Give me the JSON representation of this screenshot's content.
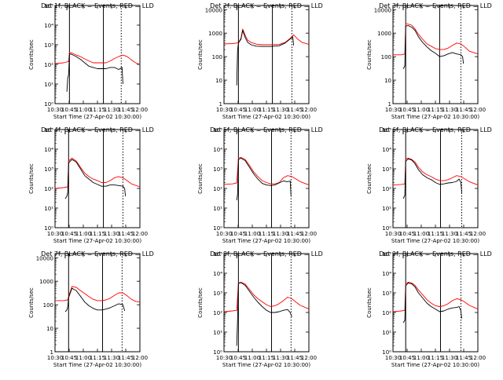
{
  "figure": {
    "colors": {
      "events": "#000000",
      "lld": "#ff0000",
      "axes": "#000000",
      "background": "#ffffff"
    },
    "x_tick_labels": [
      "10:30",
      "10:45",
      "11:00",
      "11:15",
      "11:30",
      "11:45",
      "12:00"
    ],
    "xlabel": "Start Time (27-Apr-02 10:30:00)",
    "ylabel": "Counts/sec"
  },
  "chart_data": [
    {
      "type": "line",
      "title": "Det 1f, BLACK = Events, RED = LLD",
      "xlim": [
        0,
        100
      ],
      "ylog": true,
      "ylim": [
        1,
        100000
      ],
      "y_tick_labels": [
        "10⁰",
        "10¹",
        "10²",
        "10³",
        "10⁴",
        "10⁵"
      ],
      "events_start": 14,
      "vlines": [
        {
          "x": 17,
          "style": "solid"
        },
        {
          "x": 57,
          "style": "solid"
        },
        {
          "x": 78,
          "style": "dotted"
        }
      ],
      "series": [
        {
          "color": "#ff0000",
          "x": [
            0,
            10,
            16,
            17,
            20,
            25,
            30,
            35,
            40,
            45,
            50,
            55,
            60,
            65,
            70,
            75,
            80,
            85,
            90,
            95,
            100
          ],
          "y": [
            110,
            120,
            140,
            400,
            380,
            300,
            250,
            190,
            150,
            120,
            120,
            120,
            120,
            150,
            200,
            250,
            300,
            250,
            170,
            120,
            100
          ]
        },
        {
          "color": "#000000",
          "x": [
            14,
            15,
            16,
            17,
            20,
            25,
            30,
            35,
            40,
            45,
            50,
            55,
            60,
            65,
            70,
            75,
            79,
            80
          ],
          "y": [
            4,
            20,
            30,
            350,
            320,
            250,
            180,
            120,
            80,
            70,
            60,
            60,
            60,
            70,
            70,
            55,
            70,
            10
          ]
        }
      ]
    },
    {
      "type": "line",
      "title": "Det 2f, BLACK = Events, RED = LLD",
      "xlim": [
        0,
        100
      ],
      "ylog": true,
      "ylim": [
        1,
        15000
      ],
      "y_tick_labels": [
        "1",
        "10",
        "100",
        "1000",
        "10000"
      ],
      "events_start": 15,
      "vlines": [
        {
          "x": 17,
          "style": "solid"
        },
        {
          "x": 57,
          "style": "solid"
        },
        {
          "x": 80,
          "style": "dotted"
        }
      ],
      "series": [
        {
          "color": "#ff0000",
          "x": [
            0,
            10,
            15,
            17,
            20,
            22,
            25,
            28,
            32,
            38,
            45,
            55,
            65,
            72,
            78,
            82,
            87,
            92,
            100
          ],
          "y": [
            350,
            360,
            380,
            400,
            600,
            1500,
            800,
            500,
            400,
            340,
            320,
            320,
            330,
            400,
            600,
            850,
            550,
            400,
            330
          ]
        },
        {
          "color": "#000000",
          "x": [
            15,
            16,
            17,
            20,
            22,
            25,
            28,
            32,
            38,
            45,
            55,
            65,
            72,
            78,
            81,
            82
          ],
          "y": [
            6,
            200,
            380,
            550,
            1300,
            650,
            400,
            320,
            280,
            270,
            270,
            290,
            380,
            560,
            700,
            300
          ]
        }
      ]
    },
    {
      "type": "line",
      "title": "Det 3f, BLACK = Events, RED = LLD",
      "xlim": [
        0,
        100
      ],
      "ylog": true,
      "ylim": [
        1,
        15000
      ],
      "y_tick_labels": [
        "1",
        "10",
        "100",
        "1000",
        "10000"
      ],
      "events_start": 12,
      "vlines": [
        {
          "x": 15,
          "style": "solid"
        },
        {
          "x": 55,
          "style": "solid"
        },
        {
          "x": 80,
          "style": "dotted"
        }
      ],
      "series": [
        {
          "color": "#ff0000",
          "x": [
            0,
            10,
            14,
            15,
            18,
            22,
            26,
            30,
            35,
            40,
            45,
            50,
            55,
            60,
            65,
            70,
            75,
            80,
            85,
            90,
            100
          ],
          "y": [
            120,
            120,
            130,
            2500,
            2400,
            2200,
            1500,
            900,
            550,
            350,
            280,
            220,
            200,
            200,
            230,
            300,
            380,
            350,
            250,
            170,
            130
          ]
        },
        {
          "color": "#000000",
          "x": [
            12,
            14,
            15,
            18,
            22,
            26,
            30,
            35,
            40,
            45,
            50,
            55,
            60,
            65,
            70,
            75,
            80,
            82,
            83
          ],
          "y": [
            30,
            40,
            2000,
            2100,
            1800,
            1300,
            700,
            400,
            260,
            180,
            140,
            100,
            110,
            130,
            150,
            130,
            120,
            100,
            50
          ]
        }
      ]
    },
    {
      "type": "line",
      "title": "Det 4f, BLACK = Events, RED = LLD",
      "xlim": [
        0,
        100
      ],
      "ylog": true,
      "ylim": [
        1,
        100000
      ],
      "y_tick_labels": [
        "10⁰",
        "10¹",
        "10²",
        "10³",
        "10⁴",
        "10⁵"
      ],
      "events_start": 12,
      "vlines": [
        {
          "x": 16,
          "style": "solid"
        },
        {
          "x": 57,
          "style": "solid"
        },
        {
          "x": 80,
          "style": "dotted"
        }
      ],
      "series": [
        {
          "color": "#ff0000",
          "x": [
            0,
            10,
            15,
            16,
            20,
            25,
            30,
            35,
            40,
            45,
            50,
            55,
            60,
            65,
            70,
            75,
            80,
            85,
            90,
            100
          ],
          "y": [
            100,
            110,
            120,
            2500,
            3500,
            2500,
            1200,
            600,
            400,
            300,
            250,
            200,
            200,
            250,
            350,
            400,
            350,
            250,
            170,
            120
          ]
        },
        {
          "color": "#000000",
          "x": [
            12,
            14,
            15,
            16,
            20,
            25,
            30,
            35,
            40,
            45,
            50,
            55,
            60,
            65,
            70,
            75,
            80,
            82,
            83
          ],
          "y": [
            30,
            40,
            60,
            2000,
            3000,
            2200,
            1000,
            450,
            300,
            200,
            160,
            130,
            130,
            150,
            150,
            140,
            130,
            100,
            40
          ]
        }
      ]
    },
    {
      "type": "line",
      "title": "Det 5f, BLACK = Events, RED = LLD",
      "xlim": [
        0,
        100
      ],
      "ylog": true,
      "ylim": [
        1,
        100000
      ],
      "y_tick_labels": [
        "10⁰",
        "10¹",
        "10²",
        "10³",
        "10⁴",
        "10⁵"
      ],
      "events_start": 15,
      "vlines": [
        {
          "x": 17,
          "style": "solid"
        },
        {
          "x": 56,
          "style": "solid"
        },
        {
          "x": 79,
          "style": "dotted"
        }
      ],
      "series": [
        {
          "color": "#ff0000",
          "x": [
            0,
            10,
            15,
            17,
            20,
            25,
            30,
            35,
            40,
            45,
            50,
            55,
            60,
            65,
            70,
            75,
            80,
            85,
            90,
            100
          ],
          "y": [
            160,
            170,
            190,
            3500,
            3800,
            3000,
            1500,
            700,
            400,
            250,
            200,
            170,
            170,
            200,
            350,
            450,
            400,
            300,
            220,
            150
          ]
        },
        {
          "color": "#000000",
          "x": [
            15,
            16,
            17,
            20,
            25,
            30,
            35,
            40,
            45,
            50,
            55,
            60,
            65,
            70,
            75,
            78,
            79
          ],
          "y": [
            25,
            50,
            3000,
            3500,
            2600,
            1200,
            550,
            300,
            180,
            150,
            140,
            150,
            190,
            240,
            220,
            240,
            40
          ]
        }
      ]
    },
    {
      "type": "line",
      "title": "Det 6f, BLACK = Events, RED = LLD",
      "xlim": [
        0,
        100
      ],
      "ylog": true,
      "ylim": [
        1,
        100000
      ],
      "y_tick_labels": [
        "10⁰",
        "10¹",
        "10²",
        "10³",
        "10⁴",
        "10⁵"
      ],
      "events_start": 12,
      "vlines": [
        {
          "x": 15,
          "style": "solid"
        },
        {
          "x": 56,
          "style": "solid"
        },
        {
          "x": 81,
          "style": "dotted"
        }
      ],
      "series": [
        {
          "color": "#ff0000",
          "x": [
            0,
            10,
            14,
            15,
            18,
            22,
            26,
            30,
            35,
            40,
            45,
            50,
            55,
            60,
            65,
            70,
            75,
            80,
            85,
            90,
            100
          ],
          "y": [
            150,
            160,
            170,
            3200,
            3500,
            3000,
            2200,
            1200,
            700,
            500,
            400,
            300,
            250,
            250,
            280,
            350,
            450,
            400,
            300,
            220,
            150
          ]
        },
        {
          "color": "#000000",
          "x": [
            12,
            14,
            15,
            18,
            22,
            26,
            30,
            35,
            40,
            45,
            50,
            55,
            60,
            65,
            70,
            75,
            78,
            80,
            81
          ],
          "y": [
            30,
            45,
            2500,
            3200,
            2800,
            1800,
            900,
            500,
            350,
            280,
            200,
            160,
            170,
            190,
            200,
            230,
            300,
            200,
            60
          ]
        }
      ]
    },
    {
      "type": "line",
      "title": "Det 7f, BLACK = Events, RED = LLD",
      "xlim": [
        0,
        100
      ],
      "ylog": true,
      "ylim": [
        1,
        15000
      ],
      "y_tick_labels": [
        "1",
        "10",
        "100",
        "1000",
        "10000"
      ],
      "events_start": 12,
      "vlines": [
        {
          "x": 16,
          "style": "solid"
        },
        {
          "x": 56,
          "style": "solid"
        },
        {
          "x": 79,
          "style": "dotted"
        }
      ],
      "series": [
        {
          "color": "#ff0000",
          "x": [
            0,
            10,
            15,
            16,
            20,
            25,
            30,
            35,
            40,
            45,
            50,
            55,
            60,
            65,
            70,
            75,
            80,
            85,
            90,
            95,
            100
          ],
          "y": [
            150,
            150,
            160,
            220,
            600,
            550,
            400,
            300,
            220,
            170,
            150,
            150,
            160,
            190,
            250,
            320,
            320,
            240,
            170,
            140,
            130
          ]
        },
        {
          "color": "#000000",
          "x": [
            12,
            14,
            15,
            16,
            20,
            25,
            30,
            35,
            40,
            45,
            50,
            55,
            60,
            65,
            70,
            75,
            80,
            82
          ],
          "y": [
            50,
            60,
            80,
            200,
            500,
            400,
            230,
            130,
            90,
            70,
            60,
            60,
            65,
            75,
            90,
            110,
            100,
            55
          ]
        }
      ]
    },
    {
      "type": "line",
      "title": "Det 8f, BLACK = Events, RED = LLD",
      "xlim": [
        0,
        100
      ],
      "ylog": true,
      "ylim": [
        1,
        100000
      ],
      "y_tick_labels": [
        "10⁰",
        "10¹",
        "10²",
        "10³",
        "10⁴",
        "10⁵"
      ],
      "events_start": 15,
      "vlines": [
        {
          "x": 17,
          "style": "solid"
        },
        {
          "x": 56,
          "style": "solid"
        },
        {
          "x": 79,
          "style": "dotted"
        }
      ],
      "series": [
        {
          "color": "#ff0000",
          "x": [
            0,
            10,
            15,
            17,
            20,
            25,
            30,
            35,
            40,
            45,
            50,
            55,
            60,
            65,
            70,
            75,
            80,
            85,
            90,
            100
          ],
          "y": [
            110,
            120,
            130,
            3200,
            3500,
            2800,
            1500,
            800,
            500,
            350,
            250,
            200,
            220,
            280,
            400,
            600,
            500,
            330,
            230,
            150
          ]
        },
        {
          "color": "#000000",
          "x": [
            15,
            16,
            17,
            20,
            25,
            30,
            35,
            40,
            45,
            50,
            55,
            60,
            65,
            70,
            75,
            78,
            80
          ],
          "y": [
            2,
            50,
            3000,
            3300,
            2400,
            1200,
            600,
            330,
            200,
            130,
            100,
            100,
            110,
            130,
            140,
            100,
            60
          ]
        }
      ]
    },
    {
      "type": "line",
      "title": "Det 9f, BLACK = Events, RED = LLD",
      "xlim": [
        0,
        100
      ],
      "ylog": true,
      "ylim": [
        1,
        100000
      ],
      "y_tick_labels": [
        "10⁰",
        "10¹",
        "10²",
        "10³",
        "10⁴",
        "10⁵"
      ],
      "events_start": 12,
      "vlines": [
        {
          "x": 15,
          "style": "solid"
        },
        {
          "x": 56,
          "style": "solid"
        },
        {
          "x": 80,
          "style": "dotted"
        }
      ],
      "series": [
        {
          "color": "#ff0000",
          "x": [
            0,
            10,
            14,
            15,
            18,
            22,
            26,
            30,
            35,
            40,
            45,
            50,
            55,
            60,
            65,
            70,
            75,
            80,
            85,
            90,
            100
          ],
          "y": [
            110,
            120,
            130,
            2800,
            3500,
            3200,
            2400,
            1400,
            800,
            450,
            300,
            220,
            200,
            220,
            280,
            400,
            500,
            450,
            330,
            230,
            150
          ]
        },
        {
          "color": "#000000",
          "x": [
            12,
            14,
            15,
            18,
            22,
            26,
            30,
            35,
            40,
            45,
            50,
            55,
            60,
            65,
            70,
            75,
            78,
            80,
            81
          ],
          "y": [
            30,
            40,
            2300,
            3200,
            2900,
            2000,
            1000,
            550,
            300,
            200,
            150,
            110,
            120,
            150,
            170,
            180,
            200,
            120,
            50
          ]
        }
      ]
    }
  ]
}
